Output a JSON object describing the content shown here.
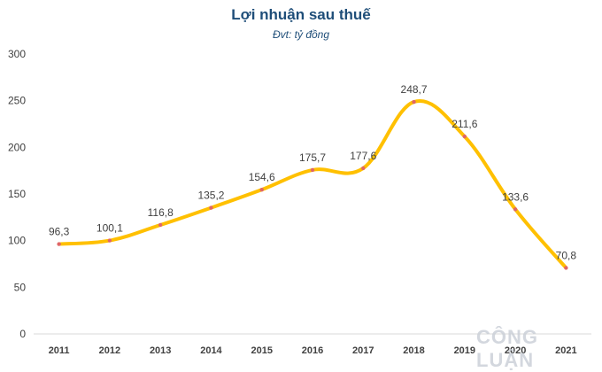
{
  "chart_data": {
    "type": "line",
    "title": "Lợi nhuận sau thuế",
    "subtitle": "Đvt: tỷ đồng",
    "categories": [
      "2011",
      "2012",
      "2013",
      "2014",
      "2015",
      "2016",
      "2017",
      "2018",
      "2019",
      "2020",
      "2021"
    ],
    "series": [
      {
        "values": [
          96.3,
          100.1,
          116.8,
          135.2,
          154.6,
          175.7,
          177.6,
          248.7,
          211.6,
          133.6,
          70.8
        ],
        "data_labels": [
          "96,3",
          "100,1",
          "116,8",
          "135,2",
          "154,6",
          "175,7",
          "177,6",
          "248,7",
          "211,6",
          "133,6",
          "70,8"
        ]
      }
    ],
    "ylim": [
      0,
      300
    ],
    "yticks": [
      0,
      50,
      100,
      150,
      200,
      250,
      300
    ],
    "grid": false,
    "colors": {
      "line": "#ffc000",
      "marker": "#e06666",
      "text": "#404040",
      "title": "#1f4e79"
    }
  },
  "watermark": "CÔNG LUẬN"
}
